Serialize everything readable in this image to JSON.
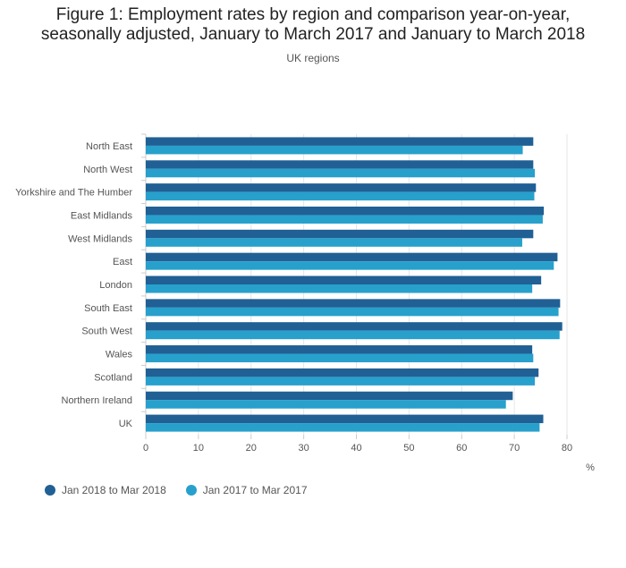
{
  "chart_data": {
    "type": "bar",
    "orientation": "horizontal",
    "title": "Figure 1: Employment rates by region and comparison year-on-year, seasonally adjusted, January to March 2017 and January to March 2018",
    "title_lines": [
      "Figure 1: Employment rates by region and comparison year-on-year,",
      "seasonally adjusted, January to March 2017 and January to March 2018"
    ],
    "subtitle": "UK regions",
    "unit_label": "%",
    "categories": [
      "North East",
      "North West",
      "Yorkshire and The Humber",
      "East Midlands",
      "West Midlands",
      "East",
      "London",
      "South East",
      "South West",
      "Wales",
      "Scotland",
      "Northern Ireland",
      "UK"
    ],
    "series": [
      {
        "name": "Jan 2018 to Mar 2018",
        "color": "#206095",
        "values": [
          73.6,
          73.6,
          74.1,
          75.6,
          73.6,
          78.2,
          75.1,
          78.7,
          79.1,
          73.4,
          74.6,
          69.7,
          75.5
        ]
      },
      {
        "name": "Jan 2017 to Mar 2017",
        "color": "#27a0cc",
        "values": [
          71.6,
          73.9,
          73.8,
          75.4,
          71.5,
          77.5,
          73.4,
          78.4,
          78.6,
          73.6,
          73.9,
          68.4,
          74.8
        ]
      }
    ],
    "xlim": [
      0,
      80
    ],
    "x_ticks": [
      0,
      10,
      20,
      30,
      40,
      50,
      60,
      70,
      80
    ],
    "grid": true,
    "legend_position": "bottom-left"
  }
}
